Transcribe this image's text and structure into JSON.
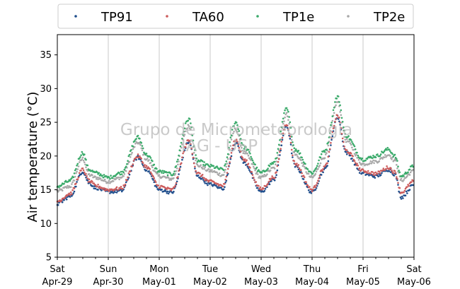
{
  "chart_data": {
    "type": "scatter",
    "ylabel": "Air temperature (°C)",
    "ylim": [
      5,
      38
    ],
    "yticks": [
      5,
      10,
      15,
      20,
      25,
      30,
      35
    ],
    "xlim": [
      "2023-04-29",
      "2023-05-06"
    ],
    "xticks": [
      {
        "day": "Sat",
        "date": "Apr-29"
      },
      {
        "day": "Sun",
        "date": "Apr-30"
      },
      {
        "day": "Mon",
        "date": "May-01"
      },
      {
        "day": "Tue",
        "date": "May-02"
      },
      {
        "day": "Wed",
        "date": "May-03"
      },
      {
        "day": "Thu",
        "date": "May-04"
      },
      {
        "day": "Fri",
        "date": "May-05"
      },
      {
        "day": "Sat",
        "date": "May-06"
      }
    ],
    "grid": "vertical",
    "legend_position": "top",
    "watermark": [
      "Grupo de Micrometeorologia",
      "IAG - USP"
    ],
    "series": [
      {
        "name": "TP91",
        "color": "#1f4e8c",
        "hours": [
          0,
          6,
          12,
          15,
          18,
          24,
          30,
          38,
          42,
          48,
          54,
          62,
          66,
          72,
          78,
          84,
          88,
          96,
          102,
          108,
          112,
          120,
          126,
          132,
          136,
          144,
          150,
          156,
          159,
          162,
          168
        ],
        "values": [
          12.9,
          14.0,
          17.7,
          16.0,
          15.3,
          14.7,
          14.8,
          19.8,
          18.0,
          15.0,
          14.6,
          22.1,
          17.0,
          15.8,
          15.2,
          22.0,
          19.0,
          14.7,
          16.5,
          24.5,
          18.5,
          14.6,
          18.0,
          25.8,
          20.5,
          17.4,
          17.0,
          18.0,
          17.3,
          13.9,
          15.7
        ]
      },
      {
        "name": "TA60",
        "color": "#cc5c5c",
        "hours": [
          0,
          6,
          12,
          15,
          18,
          24,
          30,
          38,
          42,
          48,
          54,
          62,
          66,
          72,
          78,
          84,
          88,
          96,
          102,
          108,
          112,
          120,
          126,
          132,
          136,
          144,
          150,
          156,
          159,
          162,
          168
        ],
        "values": [
          13.3,
          14.4,
          18.0,
          16.3,
          15.6,
          15.0,
          15.2,
          20.0,
          18.4,
          15.5,
          15.0,
          22.3,
          17.4,
          16.2,
          15.6,
          22.4,
          19.4,
          15.1,
          16.9,
          24.8,
          18.9,
          15.0,
          18.4,
          26.0,
          20.8,
          17.8,
          17.4,
          18.3,
          17.6,
          14.6,
          16.3
        ]
      },
      {
        "name": "TP1e",
        "color": "#3aaa6a",
        "hours": [
          0,
          6,
          12,
          15,
          18,
          24,
          30,
          38,
          42,
          48,
          54,
          62,
          66,
          72,
          78,
          84,
          88,
          96,
          102,
          108,
          112,
          120,
          126,
          132,
          136,
          144,
          150,
          156,
          159,
          162,
          168
        ],
        "values": [
          15.5,
          16.3,
          20.5,
          18.0,
          17.5,
          16.8,
          17.5,
          22.8,
          20.2,
          17.7,
          17.3,
          25.5,
          19.3,
          18.5,
          18.0,
          25.0,
          21.3,
          17.5,
          19.0,
          27.0,
          21.0,
          17.5,
          20.8,
          28.8,
          23.0,
          19.5,
          20.0,
          21.0,
          20.0,
          17.0,
          18.5
        ]
      },
      {
        "name": "TP2e",
        "color": "#a8a8a8",
        "hours": [
          0,
          6,
          12,
          15,
          18,
          24,
          30,
          38,
          42,
          48,
          54,
          62,
          66,
          72,
          78,
          84,
          88,
          96,
          102,
          108,
          112,
          120,
          126,
          132,
          136,
          144,
          150,
          156,
          159,
          162,
          168
        ],
        "values": [
          14.8,
          15.5,
          19.6,
          17.2,
          16.8,
          16.2,
          16.8,
          22.0,
          19.5,
          17.0,
          16.6,
          24.5,
          18.6,
          17.8,
          17.2,
          24.0,
          20.5,
          16.8,
          18.2,
          26.2,
          20.2,
          16.8,
          19.9,
          28.0,
          22.3,
          18.8,
          19.2,
          20.2,
          19.3,
          16.4,
          17.8
        ]
      }
    ]
  }
}
